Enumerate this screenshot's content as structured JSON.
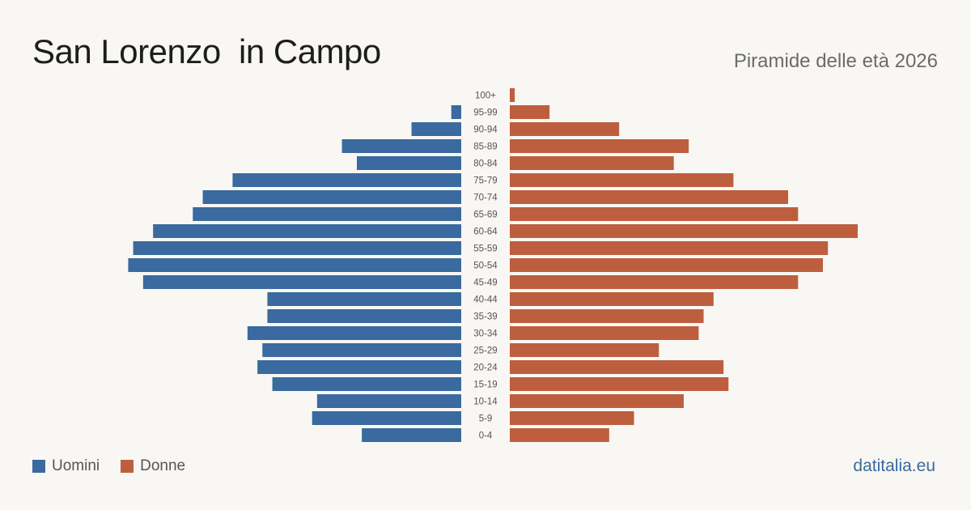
{
  "header": {
    "title": "San Lorenzo  in Campo",
    "subtitle": "Piramide delle età 2026"
  },
  "legend": {
    "male_label": "Uomini",
    "female_label": "Donne"
  },
  "footer": {
    "source": "datitalia.eu"
  },
  "colors": {
    "male": "#3a6a9f",
    "female": "#bd5f3f",
    "label": "#555555"
  },
  "chart_data": {
    "type": "bar",
    "orientation": "horizontal-pyramid",
    "categories": [
      "100+",
      "95-99",
      "90-94",
      "85-89",
      "80-84",
      "75-79",
      "70-74",
      "65-69",
      "60-64",
      "55-59",
      "50-54",
      "45-49",
      "40-44",
      "35-39",
      "30-34",
      "25-29",
      "20-24",
      "15-19",
      "10-14",
      "5-9",
      "0-4"
    ],
    "series": [
      {
        "name": "Uomini",
        "values": [
          0,
          2,
          10,
          24,
          21,
          46,
          52,
          54,
          62,
          66,
          67,
          64,
          39,
          39,
          43,
          40,
          41,
          38,
          29,
          30,
          20
        ]
      },
      {
        "name": "Donne",
        "values": [
          1,
          8,
          22,
          36,
          33,
          45,
          56,
          58,
          70,
          64,
          63,
          58,
          41,
          39,
          38,
          30,
          43,
          44,
          35,
          25,
          20
        ]
      }
    ],
    "xlabel": "",
    "ylabel": "",
    "grid": false,
    "legend_position": "bottom-left"
  }
}
